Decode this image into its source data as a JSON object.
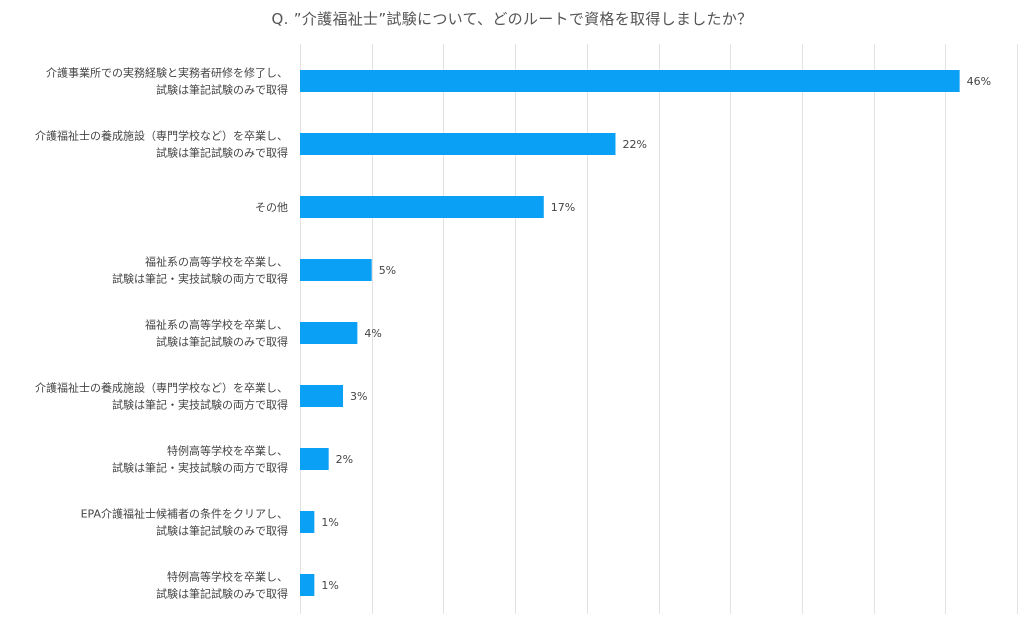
{
  "chart_data": {
    "type": "bar",
    "orientation": "horizontal",
    "title": "Q. ”介護福祉士”試験について、どのルートで資格を取得しましたか？",
    "xlim": [
      0,
      50
    ],
    "grid": true,
    "value_suffix": "%",
    "bar_color": "#0aa0f5",
    "grid_color": "#e2e2e2",
    "categories": [
      [
        "介護事業所での実務経験と実務者研修を修了し、",
        "試験は筆記試験のみで取得"
      ],
      [
        "介護福祉士の養成施設（専門学校など）を卒業し、",
        "試験は筆記試験のみで取得"
      ],
      [
        "その他"
      ],
      [
        "福祉系の高等学校を卒業し、",
        "試験は筆記・実技試験の両方で取得"
      ],
      [
        "福祉系の高等学校を卒業し、",
        "試験は筆記試験のみで取得"
      ],
      [
        "介護福祉士の養成施設（専門学校など）を卒業し、",
        "試験は筆記・実技試験の両方で取得"
      ],
      [
        "特例高等学校を卒業し、",
        "試験は筆記・実技試験の両方で取得"
      ],
      [
        "EPA介護福祉士候補者の条件をクリアし、",
        "試験は筆記試験のみで取得"
      ],
      [
        "特例高等学校を卒業し、",
        "試験は筆記試験のみで取得"
      ]
    ],
    "values": [
      46,
      22,
      17,
      5,
      4,
      3,
      2,
      1,
      1
    ]
  }
}
